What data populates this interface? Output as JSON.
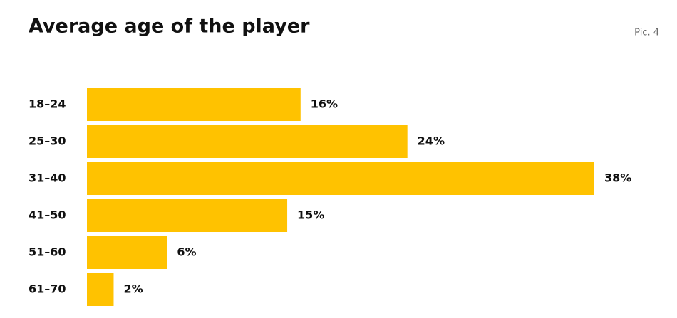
{
  "chart_data": {
    "type": "hbar",
    "title": "Average age of the player",
    "annotation": "Pic. 4",
    "categories": [
      "18–24",
      "25–30",
      "31–40",
      "41–50",
      "51–60",
      "61–70"
    ],
    "values": [
      16,
      24,
      38,
      15,
      6,
      2
    ],
    "value_labels": [
      "16%",
      "24%",
      "38%",
      "15%",
      "6%",
      "2%"
    ],
    "color": "#ffc200"
  }
}
